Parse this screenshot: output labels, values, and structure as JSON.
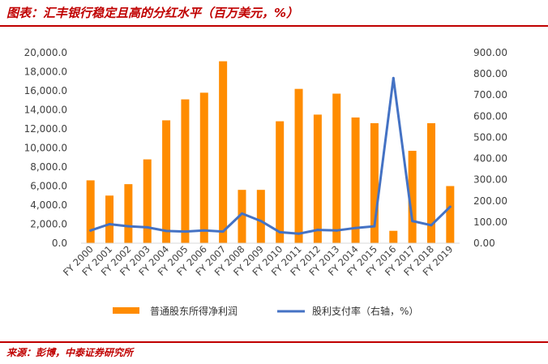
{
  "figure": {
    "title": "图表：汇丰银行稳定且高的分红水平（百万美元，%）",
    "source": "来源：彭博，中泰证券研究所"
  },
  "colors": {
    "bar": "#ff8c00",
    "line": "#4472c4",
    "accent": "#c00000"
  },
  "chart_data": {
    "type": "bar",
    "categories": [
      "FY 2000",
      "FY 2001",
      "FY 2002",
      "FY 2003",
      "FY 2004",
      "FY 2005",
      "FY 2006",
      "FY 2007",
      "FY 2008",
      "FY 2009",
      "FY 2010",
      "FY 2011",
      "FY 2012",
      "FY 2013",
      "FY 2014",
      "FY 2015",
      "FY 2016",
      "FY 2017",
      "FY 2018",
      "FY 2019"
    ],
    "series": [
      {
        "name": "普通股东所得净利润",
        "type": "bar",
        "axis": "left",
        "values": [
          6600,
          5000,
          6200,
          8800,
          12900,
          15100,
          15800,
          19100,
          5600,
          5600,
          12800,
          16200,
          13500,
          15700,
          13200,
          12600,
          1300,
          9700,
          12600,
          6000
        ]
      },
      {
        "name": "股利支付率（右轴，%）",
        "type": "line",
        "axis": "right",
        "values": [
          60,
          90,
          80,
          75,
          58,
          55,
          60,
          55,
          140,
          105,
          52,
          45,
          63,
          60,
          72,
          80,
          780,
          105,
          85,
          172
        ]
      }
    ],
    "ylim": [
      0,
      20000
    ],
    "y2lim": [
      0,
      900
    ],
    "yticks": [
      "0.0",
      "2,000.0",
      "4,000.0",
      "6,000.0",
      "8,000.0",
      "10,000.0",
      "12,000.0",
      "14,000.0",
      "16,000.0",
      "18,000.0",
      "20,000.0"
    ],
    "y2ticks": [
      "0.00",
      "100.00",
      "200.00",
      "300.00",
      "400.00",
      "500.00",
      "600.00",
      "700.00",
      "800.00",
      "900.00"
    ],
    "legend": "bottom",
    "grid": false
  }
}
